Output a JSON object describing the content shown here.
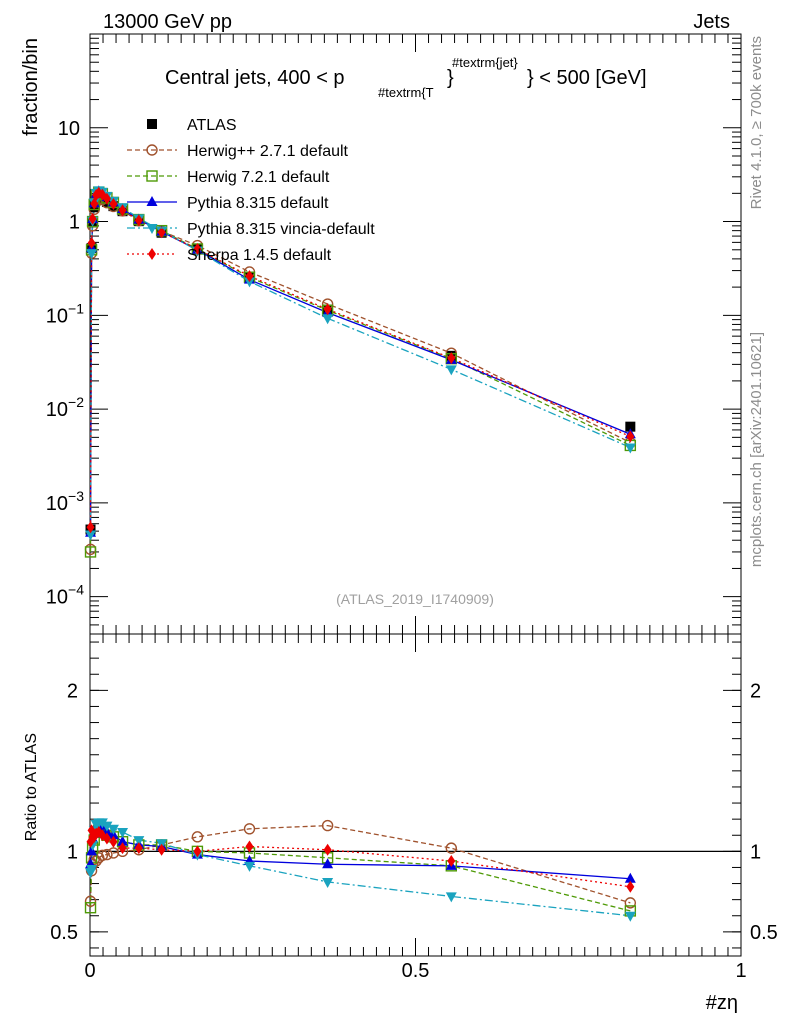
{
  "header": {
    "left": "13000 GeV pp",
    "right": "Jets"
  },
  "side_labels": {
    "rivet": "Rivet 4.1.0, ≥ 700k events",
    "mcplots": "mcplots.cern.ch [arXiv:2401.10621]"
  },
  "title_parts": {
    "main": "Central jets, 400 < p",
    "sub": "#textrm{T",
    "brace": "}",
    "sup": "#textrm{jet}",
    "end": "} < 500 [GeV]"
  },
  "ylabel_main": "fraction/bin",
  "ylabel_ratio": "Ratio to ATLAS",
  "xlabel": "#zη",
  "watermark": "(ATLAS_2019_I1740909)",
  "legend": [
    {
      "key": "atlas",
      "label": "ATLAS"
    },
    {
      "key": "herwigpp",
      "label": "Herwig++ 2.7.1 default"
    },
    {
      "key": "herwig7",
      "label": "Herwig 7.2.1 default"
    },
    {
      "key": "pythia",
      "label": "Pythia 8.315 default"
    },
    {
      "key": "vincia",
      "label": "Pythia 8.315 vincia-default"
    },
    {
      "key": "sherpa",
      "label": "Sherpa 1.4.5 default"
    }
  ],
  "colors": {
    "atlas": "#000000",
    "herwigpp": "#a0522d",
    "herwig7": "#4e9a06",
    "pythia": "#0000dd",
    "vincia": "#1aa3bf",
    "sherpa": "#ee0000",
    "watermark": "#a0a0a0",
    "side": "#8c8c8c"
  },
  "chart_data": [
    {
      "type": "line",
      "panel": "main",
      "yscale": "log",
      "xlim": [
        0,
        1
      ],
      "ylim": [
        4e-05,
        100
      ],
      "ytick_values": [
        0.0001,
        0.001,
        0.01,
        0.1,
        1,
        10
      ],
      "ytick_labels": [
        {
          "base": "10",
          "exp": "−4"
        },
        {
          "base": "10",
          "exp": "−3"
        },
        {
          "base": "10",
          "exp": "−2"
        },
        {
          "base": "10",
          "exp": "−1"
        },
        {
          "base": "1",
          "exp": ""
        },
        {
          "base": "10",
          "exp": ""
        }
      ],
      "x": [
        0.0008,
        0.0024,
        0.004,
        0.0065,
        0.0095,
        0.0135,
        0.019,
        0.026,
        0.036,
        0.05,
        0.075,
        0.11,
        0.165,
        0.245,
        0.365,
        0.555,
        0.83
      ],
      "series": [
        {
          "name": "ATLAS",
          "key": "atlas",
          "values": [
            0.00052,
            0.52,
            0.98,
            1.42,
            1.72,
            1.82,
            1.76,
            1.62,
            1.46,
            1.29,
            1.01,
            0.76,
            0.51,
            0.255,
            0.115,
            0.037,
            0.0065
          ]
        },
        {
          "name": "Herwig++ 2.7.1 default",
          "key": "herwigpp",
          "values": [
            0.00032,
            0.46,
            0.9,
            1.35,
            1.62,
            1.75,
            1.72,
            1.59,
            1.45,
            1.3,
            1.02,
            0.79,
            0.555,
            0.29,
            0.132,
            0.0395,
            0.0044
          ]
        },
        {
          "name": "Herwig 7.2.1 default",
          "key": "herwig7",
          "values": [
            0.0003,
            0.5,
            1.0,
            1.52,
            1.93,
            2.06,
            1.98,
            1.79,
            1.6,
            1.36,
            1.05,
            0.8,
            0.51,
            0.255,
            0.113,
            0.0345,
            0.0041
          ]
        },
        {
          "name": "Pythia 8.315 default",
          "key": "pythia",
          "values": [
            0.00048,
            0.52,
            1.06,
            1.57,
            1.98,
            2.1,
            2.04,
            1.82,
            1.6,
            1.36,
            1.05,
            0.78,
            0.5,
            0.24,
            0.107,
            0.0335,
            0.0054
          ]
        },
        {
          "name": "Pythia 8.315 vincia-default",
          "key": "vincia",
          "values": [
            0.00046,
            0.46,
            1.02,
            1.6,
            2.02,
            2.15,
            2.08,
            1.88,
            1.66,
            1.42,
            1.08,
            0.8,
            0.49,
            0.23,
            0.093,
            0.0265,
            0.0039
          ]
        },
        {
          "name": "Sherpa 1.4.5 default",
          "key": "sherpa",
          "values": [
            0.00055,
            0.59,
            1.07,
            1.55,
            1.92,
            2.03,
            1.94,
            1.75,
            1.54,
            1.32,
            1.03,
            0.77,
            0.51,
            0.262,
            0.116,
            0.035,
            0.0051
          ]
        }
      ]
    },
    {
      "type": "line",
      "panel": "ratio",
      "ylabel": "Ratio to ATLAS",
      "xlabel": "#zη",
      "xlim": [
        0,
        1
      ],
      "ylim": [
        0.35,
        2.35
      ],
      "xtick_values": [
        0,
        0.5,
        1
      ],
      "xtick_labels": [
        "0",
        "0.5",
        "1"
      ],
      "ytick_values": [
        0.5,
        1,
        2
      ],
      "ytick_labels": [
        "0.5",
        "1",
        "2"
      ],
      "reference_line": 1,
      "x": [
        0.0008,
        0.0024,
        0.004,
        0.0065,
        0.0095,
        0.0135,
        0.019,
        0.026,
        0.036,
        0.05,
        0.075,
        0.11,
        0.165,
        0.245,
        0.365,
        0.555,
        0.83
      ],
      "series": [
        {
          "name": "Herwig++ 2.7.1 default",
          "key": "herwigpp",
          "values": [
            0.69,
            0.88,
            0.92,
            0.95,
            0.94,
            0.96,
            0.975,
            0.98,
            0.99,
            1.0,
            1.01,
            1.04,
            1.09,
            1.14,
            1.16,
            1.02,
            0.68
          ]
        },
        {
          "name": "Herwig 7.2.1 default",
          "key": "herwig7",
          "values": [
            0.65,
            0.96,
            1.02,
            1.07,
            1.12,
            1.13,
            1.12,
            1.1,
            1.09,
            1.06,
            1.04,
            1.04,
            1.0,
            0.99,
            0.96,
            0.91,
            0.63
          ]
        },
        {
          "name": "Pythia 8.315 default",
          "key": "pythia",
          "values": [
            0.92,
            1.0,
            1.08,
            1.11,
            1.15,
            1.15,
            1.16,
            1.12,
            1.1,
            1.06,
            1.04,
            1.03,
            0.98,
            0.94,
            0.92,
            0.91,
            0.83
          ]
        },
        {
          "name": "Pythia 8.315 vincia-default",
          "key": "vincia",
          "values": [
            0.87,
            0.89,
            1.04,
            1.13,
            1.17,
            1.18,
            1.18,
            1.16,
            1.14,
            1.12,
            1.07,
            1.05,
            0.98,
            0.91,
            0.81,
            0.72,
            0.6
          ]
        },
        {
          "name": "Sherpa 1.4.5 default",
          "key": "sherpa",
          "values": [
            1.06,
            1.13,
            1.09,
            1.09,
            1.11,
            1.12,
            1.1,
            1.08,
            1.06,
            1.02,
            1.02,
            1.01,
            1.0,
            1.03,
            1.01,
            0.94,
            0.78
          ]
        }
      ]
    }
  ]
}
